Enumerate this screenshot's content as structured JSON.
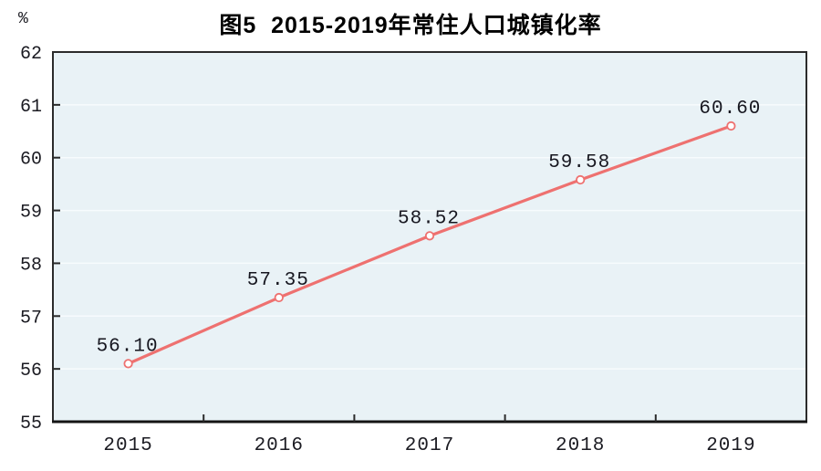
{
  "chart_data": {
    "type": "line",
    "title": "图5  2015-2019年常住人口城镇化率",
    "unit_label": "%",
    "categories": [
      "2015",
      "2016",
      "2017",
      "2018",
      "2019"
    ],
    "series": [
      {
        "values": [
          56.1,
          57.35,
          58.52,
          59.58,
          60.6
        ],
        "labels": [
          "56.10",
          "57.35",
          "58.52",
          "59.58",
          "60.60"
        ]
      }
    ],
    "ylim": [
      55,
      62
    ],
    "yticks": [
      55,
      56,
      57,
      58,
      59,
      60,
      61,
      62
    ],
    "grid": "horizontal",
    "legend": "none",
    "marker": "open-circle",
    "colors": {
      "line": "#ee7170",
      "marker_fill": "#ffffff",
      "plot_bg": "#e9f2f6",
      "gridline": "#f7fbfd",
      "border": "#2b2b2b",
      "axis": "#141414",
      "text": "#1b1b22",
      "title": "#000000"
    }
  }
}
